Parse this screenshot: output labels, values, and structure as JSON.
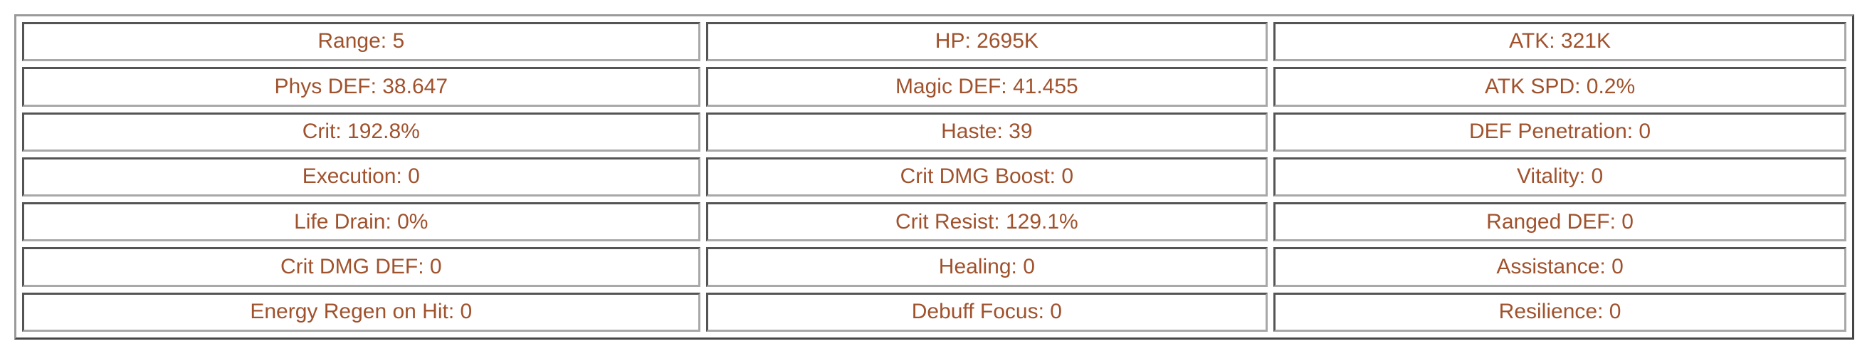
{
  "colors": {
    "text": "#A0522D",
    "cell_border": "#a8a8a8",
    "outer_border": "#9a9a9a",
    "background": "#ffffff"
  },
  "stats_table": {
    "columns": 3,
    "rows": [
      [
        "Range: 5",
        "HP: 2695K",
        "ATK: 321K"
      ],
      [
        "Phys DEF: 38.647",
        "Magic DEF: 41.455",
        "ATK SPD: 0.2%"
      ],
      [
        "Crit: 192.8%",
        "Haste: 39",
        "DEF Penetration: 0"
      ],
      [
        "Execution: 0",
        "Crit DMG Boost: 0",
        "Vitality: 0"
      ],
      [
        "Life Drain: 0%",
        "Crit Resist: 129.1%",
        "Ranged DEF: 0"
      ],
      [
        "Crit DMG DEF: 0",
        "Healing: 0",
        "Assistance: 0"
      ],
      [
        "Energy Regen on Hit: 0",
        "Debuff Focus: 0",
        "Resilience: 0"
      ]
    ]
  }
}
